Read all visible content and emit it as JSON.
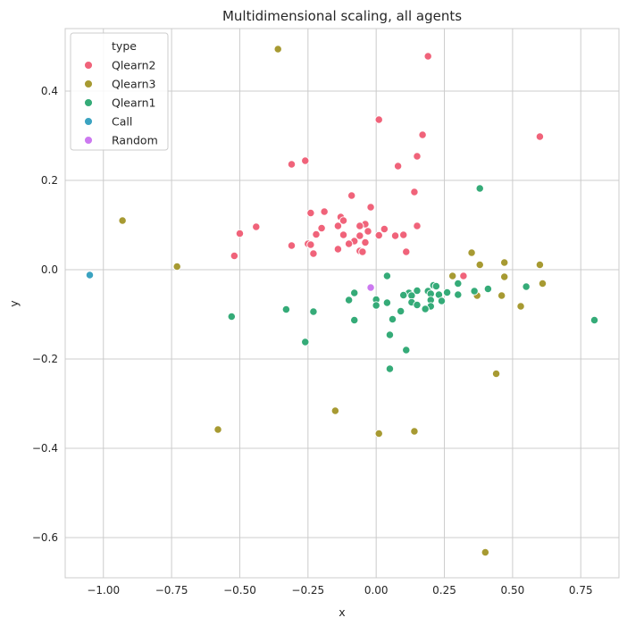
{
  "chart_data": {
    "type": "scatter",
    "title": "Multidimensional scaling, all agents",
    "xlabel": "x",
    "ylabel": "y",
    "xlim": [
      -1.14,
      0.89
    ],
    "ylim": [
      -0.69,
      0.54
    ],
    "xticks": [
      -1.0,
      -0.75,
      -0.5,
      -0.25,
      0.0,
      0.25,
      0.5,
      0.75
    ],
    "xtick_labels": [
      "−1.00",
      "−0.75",
      "−0.50",
      "−0.25",
      "0.00",
      "0.25",
      "0.50",
      "0.75"
    ],
    "yticks": [
      -0.6,
      -0.4,
      -0.2,
      0.0,
      0.2,
      0.4
    ],
    "ytick_labels": [
      "−0.6",
      "−0.4",
      "−0.2",
      "0.0",
      "0.2",
      "0.4"
    ],
    "grid": true,
    "legend": {
      "title": "type",
      "placement": "top-left"
    },
    "series": [
      {
        "name": "Qlearn2",
        "color": "#f0637a",
        "points": [
          [
            0.19,
            0.478
          ],
          [
            0.01,
            0.336
          ],
          [
            0.17,
            0.302
          ],
          [
            0.6,
            0.298
          ],
          [
            0.15,
            0.254
          ],
          [
            -0.26,
            0.244
          ],
          [
            -0.31,
            0.236
          ],
          [
            0.08,
            0.232
          ],
          [
            0.14,
            0.174
          ],
          [
            -0.09,
            0.166
          ],
          [
            -0.02,
            0.14
          ],
          [
            -0.19,
            0.13
          ],
          [
            -0.24,
            0.127
          ],
          [
            -0.13,
            0.118
          ],
          [
            -0.12,
            0.11
          ],
          [
            -0.04,
            0.102
          ],
          [
            -0.06,
            0.098
          ],
          [
            -0.14,
            0.098
          ],
          [
            0.15,
            0.098
          ],
          [
            -0.2,
            0.093
          ],
          [
            -0.44,
            0.096
          ],
          [
            0.03,
            0.091
          ],
          [
            -0.03,
            0.086
          ],
          [
            -0.5,
            0.081
          ],
          [
            -0.22,
            0.079
          ],
          [
            -0.12,
            0.078
          ],
          [
            -0.06,
            0.076
          ],
          [
            0.1,
            0.078
          ],
          [
            0.07,
            0.076
          ],
          [
            0.01,
            0.077
          ],
          [
            -0.08,
            0.064
          ],
          [
            -0.04,
            0.061
          ],
          [
            -0.1,
            0.058
          ],
          [
            -0.25,
            0.058
          ],
          [
            -0.24,
            0.056
          ],
          [
            -0.31,
            0.054
          ],
          [
            -0.14,
            0.046
          ],
          [
            -0.06,
            0.042
          ],
          [
            -0.05,
            0.04
          ],
          [
            0.11,
            0.04
          ],
          [
            -0.23,
            0.036
          ],
          [
            -0.52,
            0.031
          ],
          [
            0.32,
            -0.014
          ]
        ]
      },
      {
        "name": "Qlearn3",
        "color": "#a79a32",
        "points": [
          [
            -0.36,
            0.494
          ],
          [
            -0.93,
            0.11
          ],
          [
            -0.73,
            0.007
          ],
          [
            0.35,
            0.038
          ],
          [
            0.47,
            0.016
          ],
          [
            0.38,
            0.011
          ],
          [
            0.6,
            0.011
          ],
          [
            0.28,
            -0.014
          ],
          [
            0.47,
            -0.016
          ],
          [
            0.61,
            -0.031
          ],
          [
            0.37,
            -0.058
          ],
          [
            0.46,
            -0.058
          ],
          [
            0.53,
            -0.082
          ],
          [
            0.44,
            -0.233
          ],
          [
            -0.15,
            -0.316
          ],
          [
            -0.58,
            -0.358
          ],
          [
            0.14,
            -0.362
          ],
          [
            0.01,
            -0.367
          ],
          [
            0.4,
            -0.633
          ]
        ]
      },
      {
        "name": "Qlearn1",
        "color": "#35ab78",
        "points": [
          [
            0.38,
            0.182
          ],
          [
            0.04,
            -0.014
          ],
          [
            0.3,
            -0.031
          ],
          [
            0.21,
            -0.035
          ],
          [
            0.22,
            -0.037
          ],
          [
            0.41,
            -0.043
          ],
          [
            0.55,
            -0.038
          ],
          [
            0.36,
            -0.048
          ],
          [
            0.15,
            -0.047
          ],
          [
            0.19,
            -0.048
          ],
          [
            0.26,
            -0.051
          ],
          [
            -0.08,
            -0.052
          ],
          [
            0.12,
            -0.052
          ],
          [
            0.2,
            -0.054
          ],
          [
            0.23,
            -0.056
          ],
          [
            0.3,
            -0.056
          ],
          [
            0.1,
            -0.057
          ],
          [
            0.13,
            -0.058
          ],
          [
            0.0,
            -0.067
          ],
          [
            -0.1,
            -0.068
          ],
          [
            0.2,
            -0.068
          ],
          [
            0.24,
            -0.07
          ],
          [
            0.13,
            -0.073
          ],
          [
            0.04,
            -0.074
          ],
          [
            0.0,
            -0.08
          ],
          [
            0.15,
            -0.079
          ],
          [
            0.2,
            -0.082
          ],
          [
            0.18,
            -0.088
          ],
          [
            -0.33,
            -0.089
          ],
          [
            0.09,
            -0.093
          ],
          [
            -0.23,
            -0.094
          ],
          [
            -0.53,
            -0.105
          ],
          [
            0.06,
            -0.111
          ],
          [
            -0.08,
            -0.113
          ],
          [
            0.8,
            -0.113
          ],
          [
            0.05,
            -0.146
          ],
          [
            -0.26,
            -0.162
          ],
          [
            0.11,
            -0.18
          ],
          [
            0.05,
            -0.222
          ]
        ]
      },
      {
        "name": "Call",
        "color": "#3ba3c1",
        "points": [
          [
            -1.05,
            -0.012
          ]
        ]
      },
      {
        "name": "Random",
        "color": "#cc79f0",
        "points": [
          [
            -0.02,
            -0.04
          ]
        ]
      }
    ]
  }
}
